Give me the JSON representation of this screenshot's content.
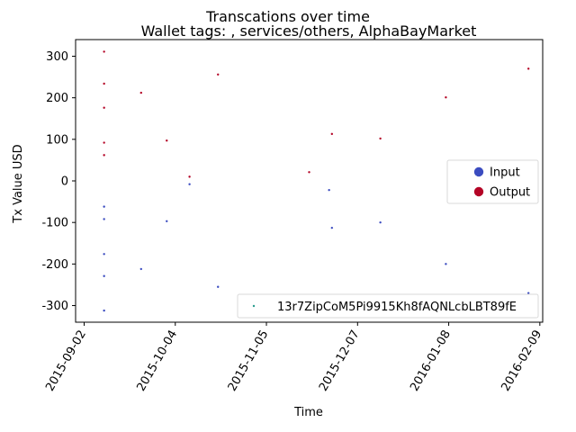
{
  "chart_data": {
    "type": "scatter",
    "title": "Transcations over time",
    "subtitle": "Wallet tags: , services/others, AlphaBayMarket",
    "xlabel": "Time",
    "ylabel": "Tx Value USD",
    "xlim": [
      "2015-08-30",
      "2016-02-10"
    ],
    "ylim": [
      -340,
      340
    ],
    "x_ticks": [
      "2015-09-02",
      "2015-10-04",
      "2015-11-05",
      "2015-12-07",
      "2016-01-08",
      "2016-02-09"
    ],
    "y_ticks": [
      -300,
      -200,
      -100,
      0,
      100,
      200,
      300
    ],
    "grid": false,
    "legends": [
      {
        "placement": "center-right",
        "entries": [
          {
            "label": "Input",
            "color": "#3b4cc0"
          },
          {
            "label": "Output",
            "color": "#b40426"
          }
        ]
      },
      {
        "placement": "lower-right",
        "entries": [
          {
            "label": "13r7ZipCoM5Pi9915Kh8fAQNLcbLBT89fE",
            "color": "#2a9d8f"
          }
        ]
      }
    ],
    "series": [
      {
        "name": "Input",
        "color": "#3b4cc0",
        "points": [
          {
            "x": "2015-09-09",
            "y": -62
          },
          {
            "x": "2015-09-09",
            "y": -92
          },
          {
            "x": "2015-09-09",
            "y": -176
          },
          {
            "x": "2015-09-09",
            "y": -229
          },
          {
            "x": "2015-09-09",
            "y": -312
          },
          {
            "x": "2015-09-22",
            "y": -212
          },
          {
            "x": "2015-10-01",
            "y": -97
          },
          {
            "x": "2015-10-09",
            "y": -8
          },
          {
            "x": "2015-10-19",
            "y": -255
          },
          {
            "x": "2015-11-27",
            "y": -22
          },
          {
            "x": "2015-11-28",
            "y": -113
          },
          {
            "x": "2015-12-15",
            "y": -100
          },
          {
            "x": "2016-01-07",
            "y": -200
          },
          {
            "x": "2016-02-05",
            "y": -270
          }
        ]
      },
      {
        "name": "Output",
        "color": "#b40426",
        "points": [
          {
            "x": "2015-09-09",
            "y": 311
          },
          {
            "x": "2015-09-09",
            "y": 234
          },
          {
            "x": "2015-09-09",
            "y": 176
          },
          {
            "x": "2015-09-09",
            "y": 92
          },
          {
            "x": "2015-09-09",
            "y": 62
          },
          {
            "x": "2015-09-22",
            "y": 212
          },
          {
            "x": "2015-10-01",
            "y": 97
          },
          {
            "x": "2015-10-09",
            "y": 10
          },
          {
            "x": "2015-10-19",
            "y": 256
          },
          {
            "x": "2015-11-20",
            "y": 21
          },
          {
            "x": "2015-11-28",
            "y": 113
          },
          {
            "x": "2015-12-15",
            "y": 102
          },
          {
            "x": "2016-01-07",
            "y": 201
          },
          {
            "x": "2016-02-05",
            "y": 270
          }
        ]
      }
    ]
  }
}
